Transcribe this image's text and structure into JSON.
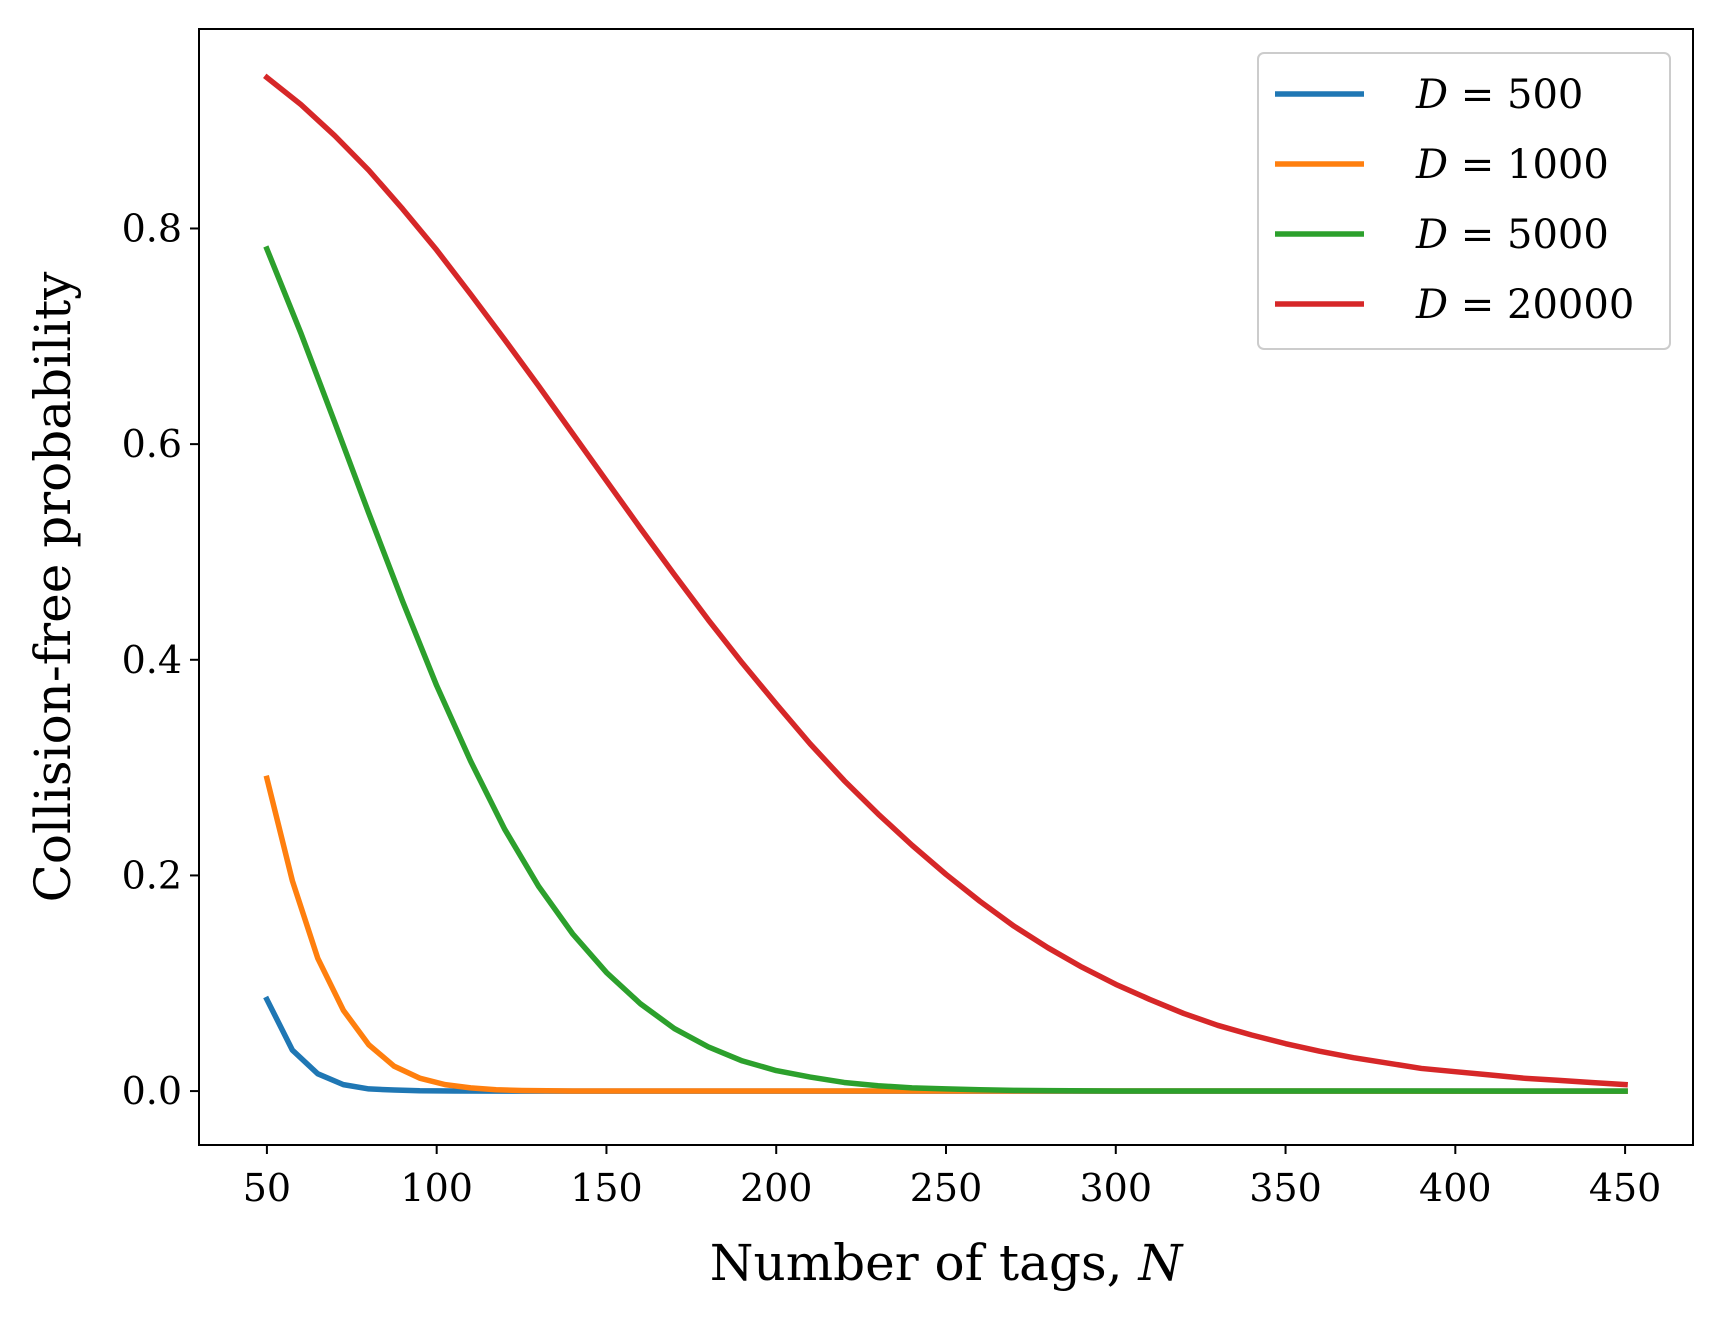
{
  "chart_data": {
    "type": "line",
    "title": "",
    "xlabel": "Number of tags,",
    "xlabel_var": "N",
    "ylabel": "Collision-free probability",
    "xlim": [
      30,
      470
    ],
    "ylim": [
      -0.05,
      0.985
    ],
    "xticks": [
      50,
      100,
      150,
      200,
      250,
      300,
      350,
      400,
      450
    ],
    "yticks": [
      0.0,
      0.2,
      0.4,
      0.6,
      0.8
    ],
    "ytick_labels": [
      "0.0",
      "0.2",
      "0.4",
      "0.6",
      "0.8"
    ],
    "legend_position": "top-right",
    "x": [
      50,
      75,
      100,
      125,
      150,
      175,
      200,
      225,
      250,
      275,
      300,
      325,
      350,
      375,
      400,
      425,
      450
    ],
    "series": [
      {
        "name": "D = 500",
        "legend_var": "D",
        "legend_value": "= 500",
        "color": "#1f77b4",
        "x": [
          50,
          57.5,
          65,
          72.5,
          80,
          87.5,
          95,
          105,
          120,
          150,
          450
        ],
        "values": [
          0.085,
          0.038,
          0.016,
          0.006,
          0.002,
          0.001,
          0.0003,
          0.0001,
          0.0,
          0.0,
          0.0
        ]
      },
      {
        "name": "D = 1000",
        "legend_var": "D",
        "legend_value": "= 1000",
        "color": "#ff7f0e",
        "x": [
          50,
          57.5,
          65,
          72.5,
          80,
          87.5,
          95,
          102.5,
          110,
          117.5,
          125,
          140,
          450
        ],
        "values": [
          0.29,
          0.195,
          0.123,
          0.075,
          0.043,
          0.023,
          0.012,
          0.006,
          0.003,
          0.0012,
          0.0005,
          0.0001,
          0.0
        ]
      },
      {
        "name": "D = 5000",
        "legend_var": "D",
        "legend_value": "= 5000",
        "color": "#2ca02c",
        "x": [
          50,
          60,
          70,
          80,
          90,
          100,
          110,
          120,
          130,
          140,
          150,
          160,
          170,
          180,
          190,
          200,
          210,
          220,
          230,
          240,
          250,
          260,
          270,
          280,
          300,
          450
        ],
        "values": [
          0.781,
          0.703,
          0.62,
          0.536,
          0.454,
          0.376,
          0.306,
          0.243,
          0.19,
          0.146,
          0.11,
          0.081,
          0.058,
          0.041,
          0.028,
          0.019,
          0.013,
          0.008,
          0.005,
          0.003,
          0.002,
          0.0012,
          0.0007,
          0.0004,
          0.0001,
          0.0
        ]
      },
      {
        "name": "D = 20000",
        "legend_var": "D",
        "legend_value": "= 20000",
        "color": "#d62728",
        "x": [
          50,
          60,
          70,
          80,
          90,
          100,
          110,
          120,
          130,
          140,
          150,
          160,
          170,
          180,
          190,
          200,
          210,
          220,
          230,
          240,
          250,
          260,
          270,
          280,
          290,
          300,
          310,
          320,
          330,
          340,
          350,
          360,
          370,
          380,
          390,
          400,
          410,
          420,
          430,
          440,
          450
        ],
        "values": [
          0.94,
          0.915,
          0.886,
          0.854,
          0.818,
          0.78,
          0.739,
          0.697,
          0.654,
          0.61,
          0.566,
          0.522,
          0.479,
          0.437,
          0.397,
          0.359,
          0.322,
          0.288,
          0.257,
          0.228,
          0.201,
          0.176,
          0.153,
          0.133,
          0.115,
          0.099,
          0.085,
          0.072,
          0.061,
          0.052,
          0.044,
          0.037,
          0.031,
          0.026,
          0.021,
          0.018,
          0.015,
          0.012,
          0.01,
          0.008,
          0.006
        ]
      }
    ]
  }
}
